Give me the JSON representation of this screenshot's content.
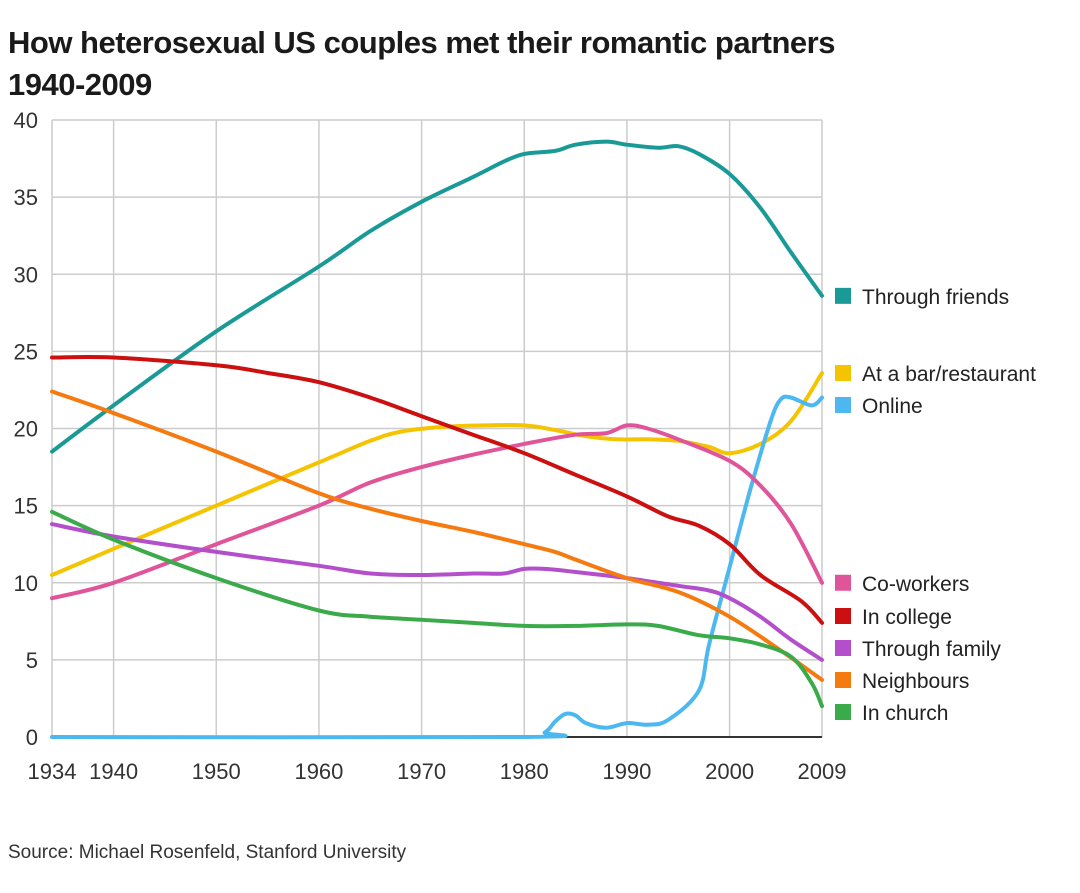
{
  "header": {
    "title_line1": "How heterosexual US couples met their romantic partners",
    "title_line2": "1940-2009"
  },
  "footer": {
    "source": "Source: Michael Rosenfeld, Stanford University"
  },
  "chart_data": {
    "type": "line",
    "title": "How heterosexual US couples met their romantic partners 1940-2009",
    "xlabel": "",
    "ylabel": "",
    "xlim": [
      1934,
      2009
    ],
    "ylim": [
      0,
      40
    ],
    "x_ticks": [
      1934,
      1940,
      1950,
      1960,
      1970,
      1980,
      1990,
      2000,
      2009
    ],
    "y_ticks": [
      0,
      5,
      10,
      15,
      20,
      25,
      30,
      35,
      40
    ],
    "grid": true,
    "legend_position": "right",
    "series": [
      {
        "name": "Through friends",
        "color": "#1a9a96",
        "points": [
          [
            1934,
            18.5
          ],
          [
            1940,
            21.5
          ],
          [
            1950,
            26.3
          ],
          [
            1960,
            30.5
          ],
          [
            1965,
            32.8
          ],
          [
            1970,
            34.7
          ],
          [
            1975,
            36.3
          ],
          [
            1978,
            37.3
          ],
          [
            1980,
            37.8
          ],
          [
            1983,
            38.0
          ],
          [
            1985,
            38.4
          ],
          [
            1988,
            38.6
          ],
          [
            1990,
            38.4
          ],
          [
            1993,
            38.2
          ],
          [
            1995,
            38.3
          ],
          [
            1997,
            37.8
          ],
          [
            2000,
            36.5
          ],
          [
            2003,
            34.3
          ],
          [
            2006,
            31.4
          ],
          [
            2009,
            28.6
          ]
        ]
      },
      {
        "name": "At a bar/restaurant",
        "color": "#f5c400",
        "points": [
          [
            1934,
            10.5
          ],
          [
            1940,
            12.2
          ],
          [
            1950,
            15.0
          ],
          [
            1960,
            17.8
          ],
          [
            1965,
            19.2
          ],
          [
            1968,
            19.8
          ],
          [
            1972,
            20.1
          ],
          [
            1976,
            20.2
          ],
          [
            1980,
            20.2
          ],
          [
            1983,
            19.9
          ],
          [
            1986,
            19.5
          ],
          [
            1989,
            19.3
          ],
          [
            1992,
            19.3
          ],
          [
            1995,
            19.2
          ],
          [
            1998,
            18.8
          ],
          [
            2000,
            18.4
          ],
          [
            2003,
            19.0
          ],
          [
            2006,
            20.5
          ],
          [
            2009,
            23.6
          ]
        ]
      },
      {
        "name": "Online",
        "color": "#4db8f0",
        "points": [
          [
            1934,
            0
          ],
          [
            1980,
            0
          ],
          [
            1982,
            0.3
          ],
          [
            1983,
            1.0
          ],
          [
            1984,
            1.5
          ],
          [
            1985,
            1.4
          ],
          [
            1986,
            0.9
          ],
          [
            1988,
            0.6
          ],
          [
            1990,
            0.9
          ],
          [
            1992,
            0.8
          ],
          [
            1994,
            1.1
          ],
          [
            1997,
            3.0
          ],
          [
            1998,
            6.0
          ],
          [
            2000,
            11.0
          ],
          [
            2002,
            16.0
          ],
          [
            2004,
            20.5
          ],
          [
            2005,
            21.9
          ],
          [
            2006,
            22.0
          ],
          [
            2008,
            21.5
          ],
          [
            2009,
            22.0
          ]
        ]
      },
      {
        "name": "Co-workers",
        "color": "#e0559a",
        "points": [
          [
            1934,
            9.0
          ],
          [
            1940,
            10.0
          ],
          [
            1950,
            12.5
          ],
          [
            1960,
            15.0
          ],
          [
            1965,
            16.5
          ],
          [
            1970,
            17.5
          ],
          [
            1975,
            18.3
          ],
          [
            1980,
            19.0
          ],
          [
            1985,
            19.6
          ],
          [
            1988,
            19.7
          ],
          [
            1990,
            20.2
          ],
          [
            1992,
            20.0
          ],
          [
            1995,
            19.3
          ],
          [
            2000,
            17.9
          ],
          [
            2003,
            16.3
          ],
          [
            2006,
            13.8
          ],
          [
            2009,
            10.0
          ]
        ]
      },
      {
        "name": "In college",
        "color": "#cc1010",
        "points": [
          [
            1934,
            24.6
          ],
          [
            1940,
            24.6
          ],
          [
            1950,
            24.1
          ],
          [
            1955,
            23.6
          ],
          [
            1960,
            23.0
          ],
          [
            1965,
            22.0
          ],
          [
            1970,
            20.8
          ],
          [
            1975,
            19.6
          ],
          [
            1980,
            18.4
          ],
          [
            1985,
            17.0
          ],
          [
            1990,
            15.6
          ],
          [
            1994,
            14.3
          ],
          [
            1997,
            13.7
          ],
          [
            2000,
            12.5
          ],
          [
            2003,
            10.5
          ],
          [
            2007,
            8.8
          ],
          [
            2009,
            7.4
          ]
        ]
      },
      {
        "name": "Through family",
        "color": "#b44fcc",
        "points": [
          [
            1934,
            13.8
          ],
          [
            1940,
            13.0
          ],
          [
            1950,
            12.0
          ],
          [
            1960,
            11.1
          ],
          [
            1965,
            10.6
          ],
          [
            1970,
            10.5
          ],
          [
            1975,
            10.6
          ],
          [
            1978,
            10.6
          ],
          [
            1980,
            10.9
          ],
          [
            1982,
            10.9
          ],
          [
            1985,
            10.7
          ],
          [
            1990,
            10.3
          ],
          [
            1995,
            9.8
          ],
          [
            1998,
            9.5
          ],
          [
            2000,
            9.0
          ],
          [
            2003,
            7.8
          ],
          [
            2006,
            6.3
          ],
          [
            2009,
            5.0
          ]
        ]
      },
      {
        "name": "Neighbours",
        "color": "#f57a10",
        "points": [
          [
            1934,
            22.4
          ],
          [
            1940,
            21.0
          ],
          [
            1950,
            18.5
          ],
          [
            1960,
            15.8
          ],
          [
            1965,
            14.8
          ],
          [
            1970,
            14.0
          ],
          [
            1975,
            13.3
          ],
          [
            1980,
            12.5
          ],
          [
            1983,
            12.0
          ],
          [
            1985,
            11.5
          ],
          [
            1990,
            10.3
          ],
          [
            1995,
            9.4
          ],
          [
            2000,
            7.8
          ],
          [
            2005,
            5.6
          ],
          [
            2009,
            3.7
          ]
        ]
      },
      {
        "name": "In church",
        "color": "#3aaa4a",
        "points": [
          [
            1934,
            14.6
          ],
          [
            1940,
            12.8
          ],
          [
            1950,
            10.3
          ],
          [
            1960,
            8.2
          ],
          [
            1965,
            7.8
          ],
          [
            1970,
            7.6
          ],
          [
            1975,
            7.4
          ],
          [
            1980,
            7.2
          ],
          [
            1985,
            7.2
          ],
          [
            1990,
            7.3
          ],
          [
            1993,
            7.2
          ],
          [
            1997,
            6.6
          ],
          [
            2000,
            6.4
          ],
          [
            2003,
            6.0
          ],
          [
            2006,
            5.2
          ],
          [
            2008,
            3.5
          ],
          [
            2009,
            2.0
          ]
        ]
      }
    ]
  }
}
